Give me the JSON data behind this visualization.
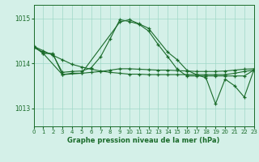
{
  "title": "Graphe pression niveau de la mer (hPa)",
  "background_color": "#d4f0e8",
  "grid_color": "#a0d8c8",
  "line_color": "#1a6b2a",
  "xlim": [
    0,
    23
  ],
  "ylim": [
    1012.6,
    1015.3
  ],
  "yticks": [
    1013,
    1014,
    1015
  ],
  "xticks": [
    0,
    1,
    2,
    3,
    4,
    5,
    6,
    7,
    8,
    9,
    10,
    11,
    12,
    13,
    14,
    15,
    16,
    17,
    18,
    19,
    20,
    21,
    22,
    23
  ],
  "lines": [
    {
      "x": [
        0,
        1,
        2,
        3,
        4,
        5,
        6,
        7,
        8,
        9,
        10,
        11,
        12,
        13,
        14,
        15,
        16,
        17,
        18,
        19,
        20,
        21,
        22,
        23
      ],
      "y": [
        1014.35,
        1014.25,
        1014.2,
        1013.8,
        1013.82,
        1013.83,
        1013.9,
        1014.15,
        1014.55,
        1014.97,
        1014.93,
        1014.87,
        1014.72,
        1014.42,
        1014.15,
        1013.87,
        1013.72,
        1013.72,
        1013.72,
        1013.72,
        1013.72,
        1013.72,
        1013.72,
        1013.85
      ]
    },
    {
      "x": [
        0,
        1,
        2,
        3,
        4,
        5,
        6,
        7,
        8,
        9,
        10,
        11,
        12,
        13,
        14,
        15,
        16,
        17,
        18,
        19,
        20,
        21,
        22,
        23
      ],
      "y": [
        1014.38,
        1014.28,
        1014.18,
        1014.08,
        1013.98,
        1013.92,
        1013.87,
        1013.83,
        1013.8,
        1013.78,
        1013.76,
        1013.76,
        1013.75,
        1013.75,
        1013.75,
        1013.75,
        1013.75,
        1013.75,
        1013.75,
        1013.75,
        1013.75,
        1013.78,
        1013.82,
        1013.85
      ]
    },
    {
      "x": [
        0,
        1,
        2,
        3,
        4,
        5,
        6,
        7,
        8,
        9,
        10,
        11,
        12,
        13,
        14,
        15,
        16,
        17,
        18,
        19,
        20,
        21,
        22,
        23
      ],
      "y": [
        1014.38,
        1014.22,
        1014.22,
        1013.75,
        1013.78,
        1013.78,
        1013.8,
        1013.82,
        1013.85,
        1013.88,
        1013.88,
        1013.87,
        1013.86,
        1013.85,
        1013.85,
        1013.84,
        1013.83,
        1013.82,
        1013.82,
        1013.82,
        1013.83,
        1013.85,
        1013.87,
        1013.88
      ]
    },
    {
      "x": [
        0,
        1,
        3,
        5,
        9,
        10,
        11,
        12,
        14,
        15,
        16,
        17,
        18,
        19,
        20,
        21,
        22,
        23
      ],
      "y": [
        1014.38,
        1014.22,
        1013.75,
        1013.78,
        1014.92,
        1014.97,
        1014.88,
        1014.78,
        1014.25,
        1014.08,
        1013.85,
        1013.75,
        1013.68,
        1013.1,
        1013.65,
        1013.5,
        1013.25,
        1013.85
      ]
    }
  ]
}
